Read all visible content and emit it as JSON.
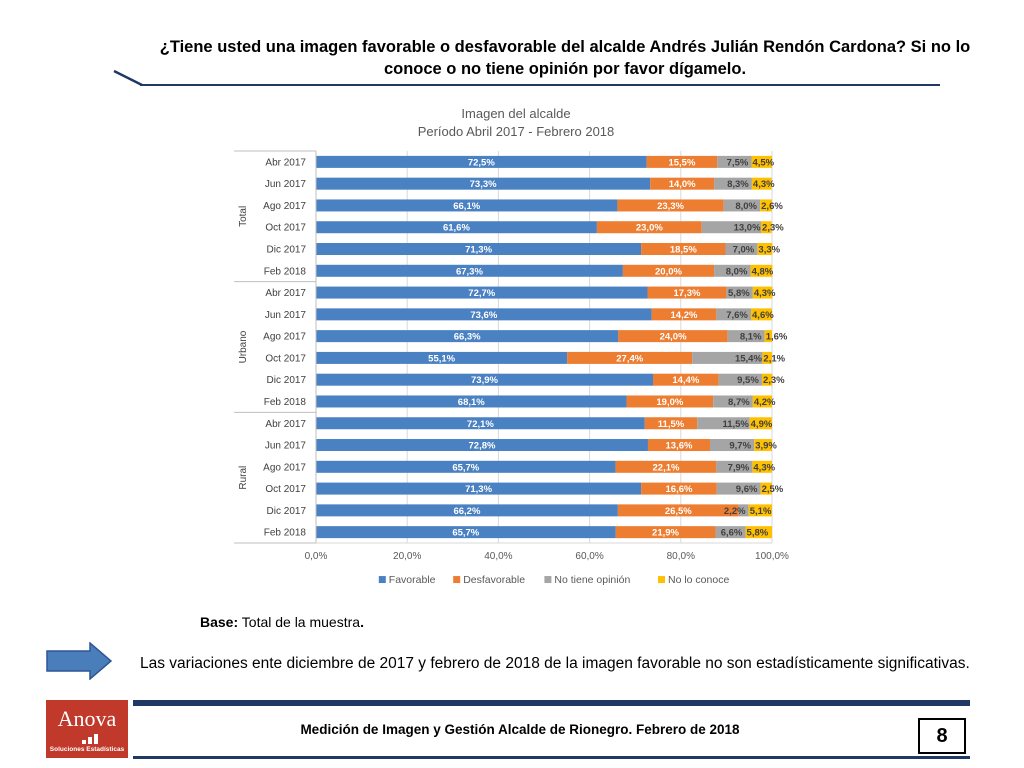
{
  "header": {
    "question": "¿Tiene usted una imagen favorable o desfavorable del alcalde Andrés Julián Rendón Cardona? Si no lo conoce o no tiene opinión por favor dígamelo."
  },
  "chart_data": {
    "type": "bar",
    "orientation": "horizontal",
    "stacked": true,
    "title": "Imagen del alcalde",
    "subtitle": "Período Abril 2017 - Febrero 2018",
    "xlim": [
      0,
      100
    ],
    "x_ticks": [
      "0,0%",
      "20,0%",
      "40,0%",
      "60,0%",
      "80,0%",
      "100,0%"
    ],
    "legend_position": "bottom",
    "groups": [
      {
        "name": "Total",
        "categories": [
          "Abr 2017",
          "Jun 2017",
          "Ago 2017",
          "Oct 2017",
          "Dic 2017",
          "Feb 2018"
        ]
      },
      {
        "name": "Urbano",
        "categories": [
          "Abr 2017",
          "Jun 2017",
          "Ago 2017",
          "Oct 2017",
          "Dic 2017",
          "Feb 2018"
        ]
      },
      {
        "name": "Rural",
        "categories": [
          "Abr 2017",
          "Jun 2017",
          "Ago 2017",
          "Oct 2017",
          "Dic 2017",
          "Feb 2018"
        ]
      }
    ],
    "series": [
      {
        "name": "Favorable",
        "color": "#4a81c2",
        "values": [
          72.5,
          73.3,
          66.1,
          61.6,
          71.3,
          67.3,
          72.7,
          73.6,
          66.3,
          55.1,
          73.9,
          68.1,
          72.1,
          72.8,
          65.7,
          71.3,
          66.2,
          65.7
        ],
        "labels": [
          "72,5%",
          "73,3%",
          "66,1%",
          "61,6%",
          "71,3%",
          "67,3%",
          "72,7%",
          "73,6%",
          "66,3%",
          "55,1%",
          "73,9%",
          "68,1%",
          "72,1%",
          "72,8%",
          "65,7%",
          "71,3%",
          "66,2%",
          "65,7%"
        ]
      },
      {
        "name": "Desfavorable",
        "color": "#ed7d31",
        "values": [
          15.5,
          14.0,
          23.3,
          23.0,
          18.5,
          20.0,
          17.3,
          14.2,
          24.0,
          27.4,
          14.4,
          19.0,
          11.5,
          13.6,
          22.1,
          16.6,
          26.5,
          21.9
        ],
        "labels": [
          "15,5%",
          "14,0%",
          "23,3%",
          "23,0%",
          "18,5%",
          "20,0%",
          "17,3%",
          "14,2%",
          "24,0%",
          "27,4%",
          "14,4%",
          "19,0%",
          "11,5%",
          "13,6%",
          "22,1%",
          "16,6%",
          "26,5%",
          "21,9%"
        ]
      },
      {
        "name": "No tiene opinión",
        "color": "#a5a5a5",
        "values": [
          7.5,
          8.3,
          8.0,
          13.0,
          7.0,
          8.0,
          5.8,
          7.6,
          8.1,
          15.4,
          9.5,
          8.7,
          11.5,
          9.7,
          7.9,
          9.6,
          2.2,
          6.6
        ],
        "labels": [
          "7,5%",
          "8,3%",
          "8,0%",
          "13,0%",
          "7,0%",
          "8,0%",
          "5,8%",
          "7,6%",
          "8,1%",
          "15,4%",
          "9,5%",
          "8,7%",
          "11,5%",
          "9,7%",
          "7,9%",
          "9,6%",
          "2,2%",
          "6,6%"
        ]
      },
      {
        "name": "No lo conoce",
        "color": "#ffc000",
        "values": [
          4.5,
          4.3,
          2.6,
          2.3,
          3.3,
          4.8,
          4.3,
          4.6,
          1.6,
          2.1,
          2.3,
          4.2,
          4.9,
          3.9,
          4.3,
          2.5,
          5.1,
          5.8
        ],
        "labels": [
          "4,5%",
          "4,3%",
          "2,6%",
          "2,3%",
          "3,3%",
          "4,8%",
          "4,3%",
          "4,6%",
          "1,6%",
          "2,1%",
          "2,3%",
          "4,2%",
          "4,9%",
          "3,9%",
          "4,3%",
          "2,5%",
          "5,1%",
          "5,8%"
        ]
      }
    ]
  },
  "base_note": {
    "label": "Base:",
    "text": " Total de la muestra",
    "end": "."
  },
  "conclusion": "Las variaciones ente diciembre de 2017 y febrero de 2018 de la imagen favorable no son estadísticamente significativas.",
  "footer": {
    "text": "Medición de Imagen y Gestión Alcalde de Rionegro. Febrero de 2018",
    "page_number": "8",
    "logo_name": "Anova",
    "logo_tagline": "Soluciones Estadísticas"
  },
  "colors": {
    "accent": "#1f3864",
    "logo": "#c0392b"
  }
}
